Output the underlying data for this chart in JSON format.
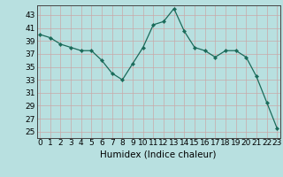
{
  "x": [
    0,
    1,
    2,
    3,
    4,
    5,
    6,
    7,
    8,
    9,
    10,
    11,
    12,
    13,
    14,
    15,
    16,
    17,
    18,
    19,
    20,
    21,
    22,
    23
  ],
  "y": [
    40,
    39.5,
    38.5,
    38,
    37.5,
    37.5,
    36,
    34,
    33,
    35.5,
    38,
    41.5,
    42,
    44,
    40.5,
    38,
    37.5,
    36.5,
    37.5,
    37.5,
    36.5,
    33.5,
    29.5,
    25.5
  ],
  "line_color": "#1a6b5a",
  "marker_color": "#1a6b5a",
  "bg_color": "#b8e0e0",
  "grid_major_color": "#c8a8a8",
  "grid_minor_color": "#d0b8b8",
  "xlabel": "Humidex (Indice chaleur)",
  "ylim": [
    24,
    44.5
  ],
  "yticks": [
    25,
    27,
    29,
    31,
    33,
    35,
    37,
    39,
    41,
    43
  ],
  "xticks": [
    0,
    1,
    2,
    3,
    4,
    5,
    6,
    7,
    8,
    9,
    10,
    11,
    12,
    13,
    14,
    15,
    16,
    17,
    18,
    19,
    20,
    21,
    22,
    23
  ],
  "xlabel_fontsize": 7.5,
  "tick_fontsize": 6.5,
  "linewidth": 0.9,
  "markersize": 2.2
}
